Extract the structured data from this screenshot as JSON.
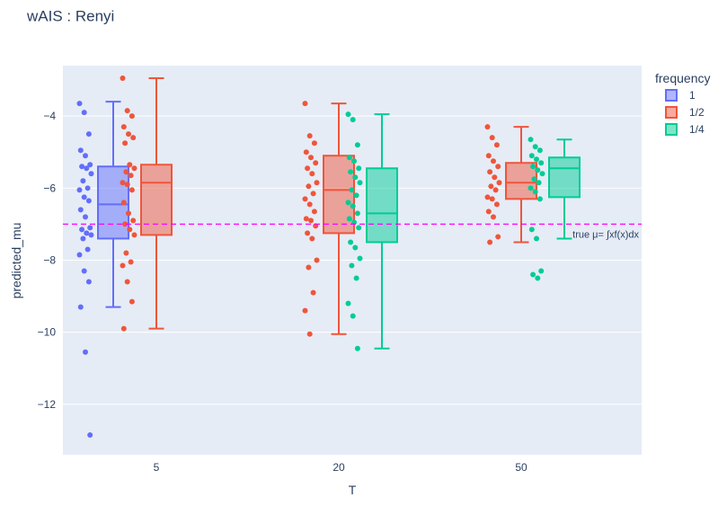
{
  "chart_data": {
    "type": "box",
    "title": "wAIS : Renyi",
    "xlabel": "T",
    "ylabel": "predicted_mu",
    "categories": [
      "5",
      "20",
      "50"
    ],
    "ylim": [
      -13.4,
      -2.6
    ],
    "yticks": [
      -4,
      -6,
      -8,
      -10,
      -12
    ],
    "ytick_labels": [
      "−4",
      "−6",
      "−8",
      "−10",
      "−12"
    ],
    "grid": true,
    "legend": {
      "title": "frequency",
      "position": "top-right",
      "entries": [
        "1",
        "1/2",
        "1/4"
      ]
    },
    "reference_line": {
      "y": -7.0,
      "label": "true μ= ∫xf(x)dx",
      "color": "#ff00ff",
      "style": "dashed"
    },
    "colors": {
      "1": "#636efa",
      "1/2": "#ef553b",
      "1/4": "#00cc96"
    },
    "series": [
      {
        "name": "1",
        "boxes": [
          {
            "category": "5",
            "min": -9.3,
            "q1": -7.4,
            "median": -6.45,
            "q3": -5.4,
            "max": -3.6,
            "points": [
              -3.65,
              -3.9,
              -4.5,
              -4.95,
              -5.1,
              -5.35,
              -5.4,
              -5.45,
              -5.6,
              -5.8,
              -6.0,
              -6.05,
              -6.25,
              -6.35,
              -6.6,
              -6.8,
              -7.1,
              -7.15,
              -7.25,
              -7.3,
              -7.4,
              -7.7,
              -7.85,
              -8.3,
              -8.6,
              -9.3,
              -10.55,
              -12.85
            ]
          }
        ]
      },
      {
        "name": "1/2",
        "boxes": [
          {
            "category": "5",
            "min": -9.9,
            "q1": -7.3,
            "median": -5.85,
            "q3": -5.35,
            "max": -2.95,
            "points": [
              -2.95,
              -3.85,
              -4.0,
              -4.3,
              -4.5,
              -4.6,
              -4.75,
              -5.35,
              -5.45,
              -5.55,
              -5.65,
              -5.85,
              -5.9,
              -6.05,
              -6.4,
              -6.7,
              -6.9,
              -7.0,
              -7.15,
              -7.3,
              -7.8,
              -8.05,
              -8.15,
              -8.6,
              -9.15,
              -9.9
            ]
          },
          {
            "category": "20",
            "min": -10.05,
            "q1": -7.25,
            "median": -6.05,
            "q3": -5.1,
            "max": -3.65,
            "points": [
              -3.65,
              -4.55,
              -4.75,
              -5.0,
              -5.15,
              -5.3,
              -5.45,
              -5.6,
              -5.85,
              -5.95,
              -6.15,
              -6.3,
              -6.45,
              -6.65,
              -6.85,
              -6.9,
              -7.05,
              -7.25,
              -7.4,
              -8.0,
              -8.2,
              -8.9,
              -9.4,
              -10.05
            ]
          },
          {
            "category": "50",
            "min": -7.5,
            "q1": -6.3,
            "median": -5.85,
            "q3": -5.3,
            "max": -4.3,
            "points": [
              -4.3,
              -4.6,
              -4.8,
              -5.1,
              -5.25,
              -5.4,
              -5.55,
              -5.7,
              -5.85,
              -5.95,
              -6.05,
              -6.25,
              -6.3,
              -6.45,
              -6.65,
              -6.8,
              -7.35,
              -7.5
            ]
          }
        ]
      },
      {
        "name": "1/4",
        "boxes": [
          {
            "category": "20",
            "min": -10.45,
            "q1": -7.5,
            "median": -6.7,
            "q3": -5.45,
            "max": -3.95,
            "points": [
              -3.95,
              -4.1,
              -4.8,
              -5.15,
              -5.25,
              -5.45,
              -5.55,
              -5.7,
              -5.85,
              -6.05,
              -6.2,
              -6.4,
              -6.5,
              -6.7,
              -6.85,
              -6.95,
              -7.1,
              -7.5,
              -7.65,
              -7.95,
              -8.15,
              -8.5,
              -9.2,
              -9.55,
              -10.45
            ]
          },
          {
            "category": "50",
            "min": -7.4,
            "q1": -6.25,
            "median": -5.45,
            "q3": -5.15,
            "max": -4.65,
            "points": [
              -4.65,
              -4.85,
              -4.95,
              -5.1,
              -5.2,
              -5.3,
              -5.4,
              -5.5,
              -5.6,
              -5.75,
              -5.85,
              -6.0,
              -6.1,
              -6.3,
              -7.15,
              -7.4,
              -8.3,
              -8.4,
              -8.5
            ]
          }
        ]
      }
    ]
  }
}
